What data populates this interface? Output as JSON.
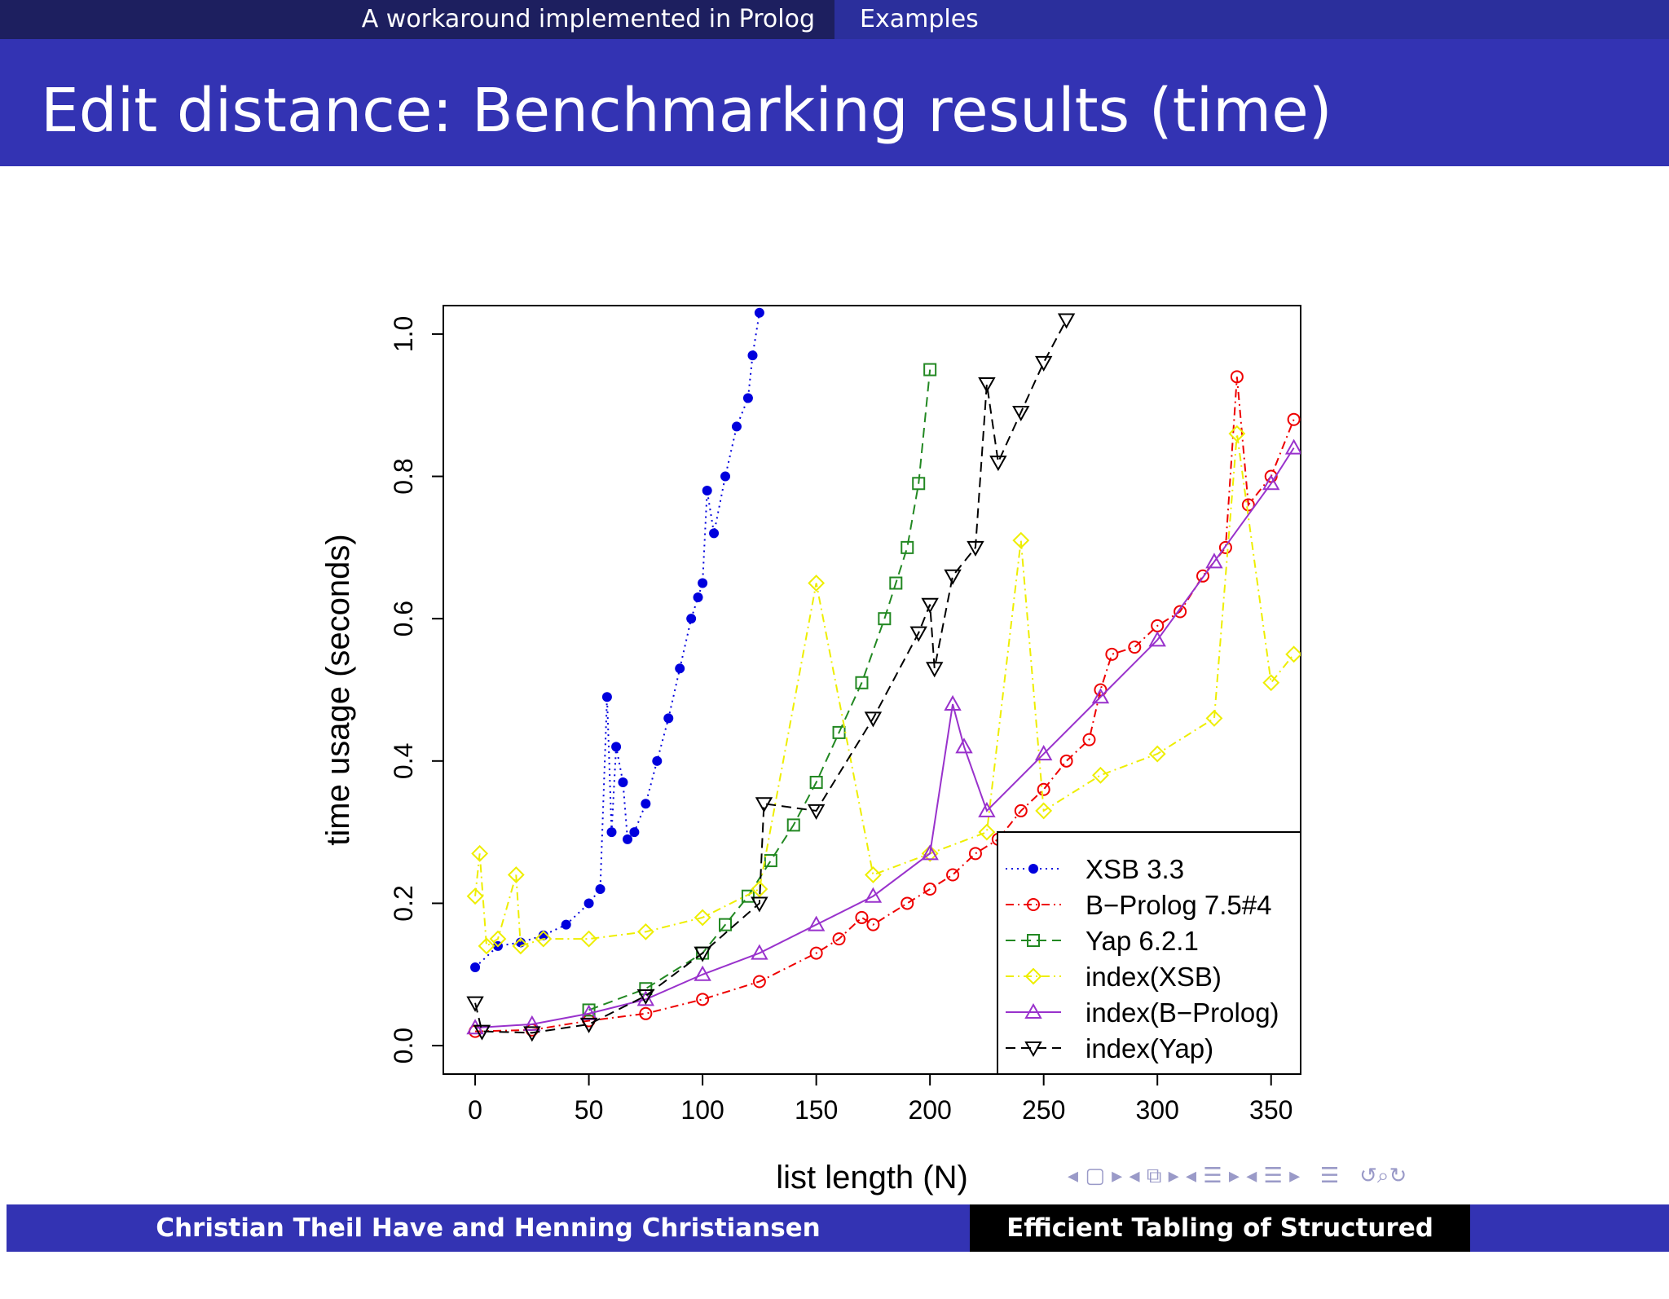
{
  "header": {
    "section": "A workaround implemented in Prolog",
    "subsection": "Examples"
  },
  "slide": {
    "title": "Edit distance: Benchmarking results (time)"
  },
  "footer": {
    "authors": "Christian Theil Have and Henning Christiansen",
    "talk_title": "Efficient Tabling of Structured Data"
  },
  "nav_icons": [
    "nav-frame-left-icon",
    "nav-frame-icon",
    "nav-frame-right-icon",
    "nav-subsection-icon",
    "nav-section-icon",
    "nav-align-icon",
    "search-icon"
  ],
  "chart_data": {
    "type": "scatter",
    "xlabel": "list length (N)",
    "ylabel": "time usage (seconds)",
    "xlim": [
      -14,
      363
    ],
    "ylim": [
      -0.04,
      1.04
    ],
    "xticks": [
      0,
      50,
      100,
      150,
      200,
      250,
      300,
      350
    ],
    "yticks": [
      0.0,
      0.2,
      0.4,
      0.6,
      0.8,
      1.0
    ],
    "ytick_labels": [
      "0.0",
      "0.2",
      "0.4",
      "0.6",
      "0.8",
      "1.0"
    ],
    "legend_position": "bottom-right",
    "series": [
      {
        "name": "XSB 3.3",
        "color": "#0000dd",
        "marker": "dot",
        "dash": "dotted",
        "x": [
          0,
          10,
          20,
          30,
          40,
          50,
          55,
          58,
          60,
          62,
          65,
          67,
          70,
          75,
          80,
          85,
          90,
          95,
          98,
          100,
          102,
          105,
          110,
          115,
          120,
          122,
          125
        ],
        "y": [
          0.11,
          0.14,
          0.145,
          0.155,
          0.17,
          0.2,
          0.22,
          0.49,
          0.3,
          0.42,
          0.37,
          0.29,
          0.3,
          0.34,
          0.4,
          0.46,
          0.53,
          0.6,
          0.63,
          0.65,
          0.78,
          0.72,
          0.8,
          0.87,
          0.91,
          0.97,
          1.03
        ]
      },
      {
        "name": "B−Prolog 7.5#4",
        "color": "#ee0000",
        "marker": "circle",
        "dash": "dashdot",
        "x": [
          0,
          25,
          50,
          75,
          100,
          125,
          150,
          160,
          170,
          175,
          190,
          200,
          210,
          220,
          230,
          240,
          250,
          260,
          270,
          275,
          280,
          290,
          300,
          310,
          320,
          330,
          335,
          340,
          350,
          360
        ],
        "y": [
          0.02,
          0.022,
          0.035,
          0.045,
          0.065,
          0.09,
          0.13,
          0.15,
          0.18,
          0.17,
          0.2,
          0.22,
          0.24,
          0.27,
          0.29,
          0.33,
          0.36,
          0.4,
          0.43,
          0.5,
          0.55,
          0.56,
          0.59,
          0.61,
          0.66,
          0.7,
          0.94,
          0.76,
          0.8,
          0.88
        ]
      },
      {
        "name": "Yap 6.2.1",
        "color": "#228822",
        "marker": "square",
        "dash": "dashed",
        "x": [
          50,
          75,
          100,
          110,
          120,
          130,
          140,
          150,
          160,
          170,
          180,
          185,
          190,
          195,
          200
        ],
        "y": [
          0.05,
          0.08,
          0.13,
          0.17,
          0.21,
          0.26,
          0.31,
          0.37,
          0.44,
          0.51,
          0.6,
          0.65,
          0.7,
          0.79,
          0.95
        ]
      },
      {
        "name": "index(XSB)",
        "color": "#eeee00",
        "marker": "diamond",
        "dash": "dashdot",
        "x": [
          0,
          2,
          5,
          10,
          18,
          20,
          30,
          50,
          75,
          100,
          125,
          150,
          175,
          200,
          225,
          240,
          250,
          275,
          300,
          325,
          335,
          350,
          360
        ],
        "y": [
          0.21,
          0.27,
          0.14,
          0.15,
          0.24,
          0.14,
          0.15,
          0.15,
          0.16,
          0.18,
          0.22,
          0.65,
          0.24,
          0.27,
          0.3,
          0.71,
          0.33,
          0.38,
          0.41,
          0.46,
          0.86,
          0.51,
          0.55
        ]
      },
      {
        "name": "index(B−Prolog)",
        "color": "#9932cc",
        "marker": "triangle-up",
        "dash": "solid",
        "x": [
          0,
          25,
          50,
          75,
          100,
          125,
          150,
          175,
          200,
          210,
          215,
          225,
          250,
          275,
          300,
          325,
          350,
          360
        ],
        "y": [
          0.025,
          0.03,
          0.045,
          0.065,
          0.1,
          0.13,
          0.17,
          0.21,
          0.27,
          0.48,
          0.42,
          0.33,
          0.41,
          0.49,
          0.57,
          0.68,
          0.79,
          0.84
        ]
      },
      {
        "name": "index(Yap)",
        "color": "#000000",
        "marker": "triangle-down",
        "dash": "dashed",
        "x": [
          0,
          3,
          25,
          50,
          75,
          100,
          125,
          127,
          150,
          175,
          195,
          200,
          202,
          210,
          220,
          225,
          230,
          240,
          250,
          260
        ],
        "y": [
          0.06,
          0.02,
          0.018,
          0.03,
          0.07,
          0.13,
          0.2,
          0.34,
          0.33,
          0.46,
          0.58,
          0.62,
          0.53,
          0.66,
          0.7,
          0.93,
          0.82,
          0.89,
          0.96,
          1.02
        ]
      }
    ]
  }
}
